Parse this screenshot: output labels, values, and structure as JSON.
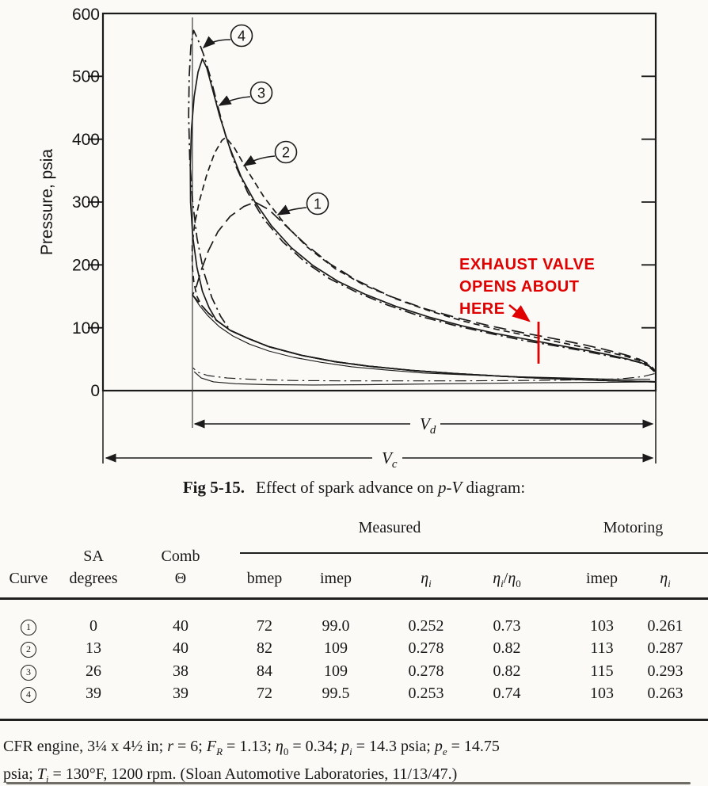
{
  "chart_data": {
    "type": "line",
    "title": "Effect of spark advance on p-V diagram",
    "ylabel": "Pressure, psia",
    "ylim": [
      0,
      600
    ],
    "yticks": [
      "600",
      "500",
      "400",
      "300",
      "200",
      "100",
      "0"
    ],
    "x_axis_note": "volume axis unlabeled; spans marked Vd (displacement) and Vc (total)",
    "grid": false,
    "vd_label": {
      "main": "V",
      "sub": "d"
    },
    "vc_label": {
      "main": "V",
      "sub": "c"
    },
    "annotation": {
      "lines": [
        "EXHAUST VALVE",
        "OPENS ABOUT",
        "HERE"
      ],
      "color": "#e00000"
    },
    "callouts": [
      {
        "n": "4"
      },
      {
        "n": "3"
      },
      {
        "n": "2"
      },
      {
        "n": "1"
      }
    ],
    "compression": [
      [
        1.0,
        14
      ],
      [
        0.95,
        15
      ],
      [
        0.88,
        17
      ],
      [
        0.8,
        19.5
      ],
      [
        0.72,
        23
      ],
      [
        0.64,
        27
      ],
      [
        0.56,
        32
      ],
      [
        0.48,
        39
      ],
      [
        0.42,
        46
      ],
      [
        0.36,
        56
      ],
      [
        0.3,
        70
      ],
      [
        0.26,
        84
      ],
      [
        0.23,
        96
      ],
      [
        0.205,
        112
      ],
      [
        0.19,
        124
      ],
      [
        0.178,
        136
      ],
      [
        0.168,
        146
      ],
      [
        0.162,
        152
      ]
    ],
    "curves": [
      {
        "id": "1",
        "name": "Curve 1, SA 0 deg, peak ~300 psia",
        "style": "long-dash",
        "branch_v": 0.162,
        "points": [
          [
            0.168,
            163
          ],
          [
            0.178,
            192
          ],
          [
            0.191,
            223
          ],
          [
            0.208,
            253
          ],
          [
            0.23,
            277
          ],
          [
            0.255,
            293
          ],
          [
            0.275,
            300
          ],
          [
            0.3,
            288
          ],
          [
            0.33,
            263
          ],
          [
            0.365,
            234
          ],
          [
            0.41,
            202
          ],
          [
            0.46,
            175
          ],
          [
            0.52,
            150
          ],
          [
            0.58,
            131
          ],
          [
            0.64,
            116
          ],
          [
            0.7,
            103
          ],
          [
            0.76,
            92
          ],
          [
            0.82,
            82
          ],
          [
            0.87,
            73
          ],
          [
            0.91,
            65
          ],
          [
            0.945,
            57
          ],
          [
            0.97,
            50
          ],
          [
            0.988,
            42
          ],
          [
            0.998,
            33
          ]
        ]
      },
      {
        "id": "2",
        "name": "Curve 2, SA 13 deg, peak ~405 psia",
        "style": "short-dash",
        "branch_v": 0.178,
        "points": [
          [
            0.17,
            150
          ],
          [
            0.1645,
            172
          ],
          [
            0.1615,
            200
          ],
          [
            0.1615,
            232
          ],
          [
            0.166,
            266
          ],
          [
            0.175,
            303
          ],
          [
            0.188,
            344
          ],
          [
            0.202,
            378
          ],
          [
            0.215,
            398
          ],
          [
            0.222,
            403
          ],
          [
            0.238,
            386
          ],
          [
            0.262,
            349
          ],
          [
            0.292,
            307
          ],
          [
            0.33,
            264
          ],
          [
            0.37,
            228
          ],
          [
            0.42,
            194
          ],
          [
            0.47,
            169
          ],
          [
            0.53,
            146
          ],
          [
            0.59,
            127
          ],
          [
            0.65,
            111
          ],
          [
            0.71,
            98
          ],
          [
            0.77,
            87
          ],
          [
            0.82,
            78
          ],
          [
            0.87,
            69
          ],
          [
            0.91,
            62
          ],
          [
            0.945,
            55
          ],
          [
            0.97,
            48
          ],
          [
            0.988,
            40
          ],
          [
            0.998,
            32
          ]
        ]
      },
      {
        "id": "3",
        "name": "Curve 3, SA 26 deg, peak ~530 psia",
        "style": "solid",
        "branch_v": 0.205,
        "points": [
          [
            0.192,
            132
          ],
          [
            0.18,
            158
          ],
          [
            0.17,
            196
          ],
          [
            0.1625,
            245
          ],
          [
            0.1585,
            300
          ],
          [
            0.158,
            358
          ],
          [
            0.16,
            415
          ],
          [
            0.165,
            468
          ],
          [
            0.172,
            507
          ],
          [
            0.18,
            528
          ],
          [
            0.188,
            513
          ],
          [
            0.198,
            480
          ],
          [
            0.211,
            437
          ],
          [
            0.228,
            390
          ],
          [
            0.25,
            340
          ],
          [
            0.275,
            300
          ],
          [
            0.305,
            262
          ],
          [
            0.34,
            228
          ],
          [
            0.38,
            199
          ],
          [
            0.425,
            174
          ],
          [
            0.475,
            153
          ],
          [
            0.53,
            134
          ],
          [
            0.59,
            117
          ],
          [
            0.65,
            103
          ],
          [
            0.71,
            91
          ],
          [
            0.77,
            81
          ],
          [
            0.825,
            72
          ],
          [
            0.875,
            64
          ],
          [
            0.915,
            57
          ],
          [
            0.95,
            50
          ],
          [
            0.975,
            44
          ],
          [
            0.99,
            38
          ],
          [
            0.998,
            31
          ]
        ]
      },
      {
        "id": "4",
        "name": "Curve 4, SA 39 deg, peak ~575 psia",
        "style": "dash-dot",
        "branch_v": 0.23,
        "points": [
          [
            0.213,
            118
          ],
          [
            0.197,
            148
          ],
          [
            0.182,
            190
          ],
          [
            0.17,
            243
          ],
          [
            0.162,
            303
          ],
          [
            0.157,
            368
          ],
          [
            0.155,
            438
          ],
          [
            0.156,
            500
          ],
          [
            0.159,
            548
          ],
          [
            0.164,
            573
          ],
          [
            0.172,
            558
          ],
          [
            0.182,
            535
          ],
          [
            0.194,
            500
          ],
          [
            0.207,
            455
          ],
          [
            0.222,
            405
          ],
          [
            0.24,
            358
          ],
          [
            0.262,
            315
          ],
          [
            0.29,
            274
          ],
          [
            0.325,
            237
          ],
          [
            0.365,
            205
          ],
          [
            0.41,
            178
          ],
          [
            0.46,
            156
          ],
          [
            0.515,
            136
          ],
          [
            0.575,
            118
          ],
          [
            0.635,
            104
          ],
          [
            0.7,
            91
          ],
          [
            0.76,
            80
          ],
          [
            0.82,
            71
          ],
          [
            0.87,
            63
          ],
          [
            0.91,
            56
          ],
          [
            0.945,
            50
          ],
          [
            0.97,
            45
          ],
          [
            0.988,
            38
          ],
          [
            0.998,
            30
          ]
        ]
      },
      {
        "id": "motoring",
        "name": "motoring expansion",
        "style": "solid thin",
        "branch_v": 2,
        "points": [
          [
            0.162,
            152
          ],
          [
            0.175,
            135
          ],
          [
            0.19,
            119
          ],
          [
            0.21,
            102
          ],
          [
            0.235,
            87
          ],
          [
            0.265,
            74
          ],
          [
            0.3,
            63
          ],
          [
            0.345,
            53
          ],
          [
            0.395,
            45
          ],
          [
            0.45,
            38
          ],
          [
            0.51,
            33
          ],
          [
            0.58,
            28
          ],
          [
            0.66,
            25
          ],
          [
            0.75,
            22
          ],
          [
            0.84,
            20
          ],
          [
            0.93,
            18
          ],
          [
            0.99,
            18
          ]
        ]
      },
      {
        "id": "exhaust",
        "name": "exhaust stroke",
        "style": "dash-dot thin",
        "branch_v": 2,
        "points": [
          [
            0.998,
            27
          ],
          [
            0.975,
            22
          ],
          [
            0.94,
            19
          ],
          [
            0.89,
            17.5
          ],
          [
            0.82,
            16.5
          ],
          [
            0.74,
            16
          ],
          [
            0.64,
            15.5
          ],
          [
            0.54,
            15.5
          ],
          [
            0.44,
            15.5
          ],
          [
            0.35,
            16
          ],
          [
            0.28,
            17.5
          ],
          [
            0.225,
            20
          ],
          [
            0.19,
            24
          ],
          [
            0.172,
            29
          ],
          [
            0.163,
            36
          ]
        ]
      },
      {
        "id": "intake",
        "name": "intake stroke",
        "style": "solid thin",
        "branch_v": 2,
        "points": [
          [
            0.165,
            30
          ],
          [
            0.178,
            20
          ],
          [
            0.2,
            14
          ],
          [
            0.24,
            11
          ],
          [
            0.3,
            9.5
          ],
          [
            0.38,
            9
          ],
          [
            0.48,
            9.5
          ],
          [
            0.58,
            10.5
          ],
          [
            0.68,
            11.5
          ],
          [
            0.78,
            12.5
          ],
          [
            0.87,
            13
          ],
          [
            0.94,
            13.5
          ],
          [
            1.0,
            14
          ]
        ]
      }
    ]
  },
  "caption": {
    "fig": "Fig 5-15.",
    "mid": "Effect of spark advance on ",
    "pv": "p-V",
    "tail": " diagram:"
  },
  "table": {
    "group_headers": {
      "measured": "Measured",
      "motoring": "Motoring"
    },
    "headers": {
      "curve": "Curve",
      "sa1": "SA",
      "sa2": "degrees",
      "comb1": "Comb",
      "comb2": "Θ",
      "bmep": "bmep",
      "imep": "imep",
      "eta_i": {
        "base": "η",
        "sub": "i"
      },
      "eta_ratio": [
        "η",
        "i",
        "/",
        "η",
        "0"
      ],
      "m_imep": "imep"
    },
    "rows": [
      {
        "cells": [
          "1",
          "0",
          "40",
          "72",
          "99.0",
          "0.252",
          "0.73",
          "103",
          "0.261"
        ]
      },
      {
        "cells": [
          "2",
          "13",
          "40",
          "82",
          "109",
          "0.278",
          "0.82",
          "113",
          "0.287"
        ]
      },
      {
        "cells": [
          "3",
          "26",
          "38",
          "84",
          "109",
          "0.278",
          "0.82",
          "115",
          "0.293"
        ]
      },
      {
        "cells": [
          "4",
          "39",
          "39",
          "72",
          "99.5",
          "0.253",
          "0.74",
          "103",
          "0.263"
        ]
      }
    ]
  },
  "footer": {
    "line1": [
      "CFR engine, 3¼ x 4½ in; ",
      "r",
      " = 6; ",
      "F",
      "R",
      " = 1.13; ",
      "η",
      "0",
      " = 0.34; ",
      "p",
      "i",
      " = 14.3 psia; ",
      "p",
      "e",
      " = 14.75"
    ],
    "line2": [
      "psia; ",
      "T",
      "i",
      " = 130°F, 1200 rpm.  (Sloan Automotive Laboratories, 11/13/47.)"
    ]
  }
}
